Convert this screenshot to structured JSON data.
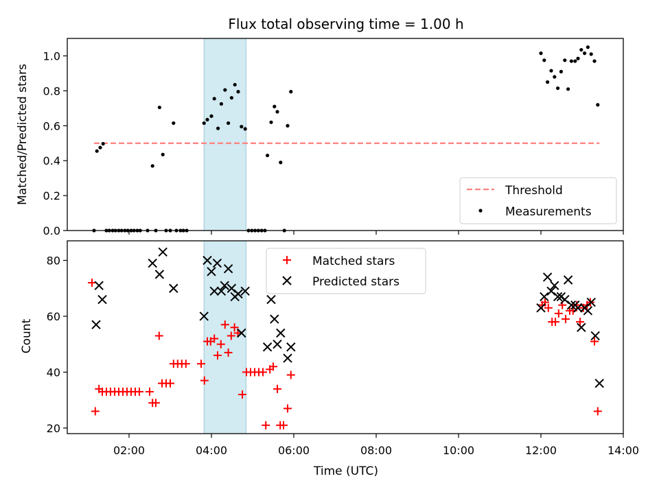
{
  "chart_data": [
    {
      "type": "scatter",
      "title": "Flux total observing time = 1.00 h",
      "xlabel": "",
      "ylabel": "Matched/Predicted stars",
      "xlim": [
        0.5,
        14.0
      ],
      "ylim": [
        0.0,
        1.1
      ],
      "yticks": [
        0.0,
        0.2,
        0.4,
        0.6,
        0.8,
        1.0
      ],
      "ytick_labels": [
        "0.0",
        "0.2",
        "0.4",
        "0.6",
        "0.8",
        "1.0"
      ],
      "highlight_span": {
        "x": [
          3.82,
          4.84
        ],
        "color": "#add8e6"
      },
      "threshold": {
        "name": "Threshold",
        "y": 0.5,
        "x": [
          1.15,
          13.42
        ],
        "color": "#ff7f7f"
      },
      "legend": {
        "position": "lower-right",
        "entries": [
          "Threshold",
          "Measurements"
        ]
      },
      "series": [
        {
          "name": "Measurements",
          "color": "#000000",
          "marker": "dot",
          "points": [
            [
              1.15,
              0
            ],
            [
              1.22,
              0.455
            ],
            [
              1.3,
              0.475
            ],
            [
              1.37,
              0.497
            ],
            [
              1.45,
              0
            ],
            [
              1.52,
              0
            ],
            [
              1.6,
              0
            ],
            [
              1.67,
              0
            ],
            [
              1.75,
              0
            ],
            [
              1.82,
              0
            ],
            [
              1.9,
              0
            ],
            [
              1.97,
              0
            ],
            [
              2.05,
              0
            ],
            [
              2.12,
              0
            ],
            [
              2.2,
              0
            ],
            [
              2.27,
              0
            ],
            [
              2.45,
              0
            ],
            [
              2.57,
              0.37
            ],
            [
              2.65,
              0
            ],
            [
              2.74,
              0.705
            ],
            [
              2.82,
              0.435
            ],
            [
              2.9,
              0
            ],
            [
              3.0,
              0
            ],
            [
              3.08,
              0.615
            ],
            [
              3.15,
              0
            ],
            [
              3.25,
              0
            ],
            [
              3.32,
              0
            ],
            [
              3.4,
              0
            ],
            [
              3.82,
              0.615
            ],
            [
              3.9,
              0.635
            ],
            [
              4.0,
              0.655
            ],
            [
              4.07,
              0.755
            ],
            [
              4.16,
              0.585
            ],
            [
              4.24,
              0.725
            ],
            [
              4.33,
              0.805
            ],
            [
              4.41,
              0.615
            ],
            [
              4.49,
              0.76
            ],
            [
              4.57,
              0.835
            ],
            [
              4.65,
              0.795
            ],
            [
              4.73,
              0.595
            ],
            [
              4.82,
              0.582
            ],
            [
              4.9,
              0
            ],
            [
              4.98,
              0
            ],
            [
              5.06,
              0
            ],
            [
              5.14,
              0
            ],
            [
              5.22,
              0
            ],
            [
              5.3,
              0
            ],
            [
              5.36,
              0.43
            ],
            [
              5.45,
              0.62
            ],
            [
              5.53,
              0.71
            ],
            [
              5.6,
              0.68
            ],
            [
              5.68,
              0.39
            ],
            [
              5.77,
              0
            ],
            [
              5.85,
              0.6
            ],
            [
              5.93,
              0.795
            ],
            [
              12.0,
              1.015
            ],
            [
              12.08,
              0.975
            ],
            [
              12.16,
              0.85
            ],
            [
              12.25,
              0.915
            ],
            [
              12.33,
              0.88
            ],
            [
              12.41,
              0.815
            ],
            [
              12.49,
              0.91
            ],
            [
              12.58,
              0.975
            ],
            [
              12.66,
              0.81
            ],
            [
              12.74,
              0.97
            ],
            [
              12.83,
              0.97
            ],
            [
              12.9,
              0.985
            ],
            [
              12.98,
              1.035
            ],
            [
              13.06,
              1.015
            ],
            [
              13.14,
              1.05
            ],
            [
              13.22,
              1.01
            ],
            [
              13.3,
              0.97
            ],
            [
              13.38,
              0.72
            ]
          ]
        }
      ]
    },
    {
      "type": "scatter",
      "title": "",
      "xlabel": "Time (UTC)",
      "ylabel": "Count",
      "xlim": [
        0.5,
        14.0
      ],
      "ylim": [
        18,
        87
      ],
      "xticks": [
        2,
        4,
        6,
        8,
        10,
        12,
        14
      ],
      "xtick_labels": [
        "02:00",
        "04:00",
        "06:00",
        "08:00",
        "10:00",
        "12:00",
        "14:00"
      ],
      "yticks": [
        20,
        40,
        60,
        80
      ],
      "ytick_labels": [
        "20",
        "40",
        "60",
        "80"
      ],
      "highlight_span": {
        "x": [
          3.82,
          4.84
        ],
        "color": "#add8e6"
      },
      "legend": {
        "position": "top-center",
        "entries": [
          "Matched stars",
          "Predicted stars"
        ]
      },
      "series": [
        {
          "name": "Matched stars",
          "color": "#ff0000",
          "marker": "plus",
          "points": [
            [
              1.1,
              72
            ],
            [
              1.18,
              26
            ],
            [
              1.27,
              34
            ],
            [
              1.35,
              33
            ],
            [
              1.45,
              33
            ],
            [
              1.55,
              33
            ],
            [
              1.65,
              33
            ],
            [
              1.75,
              33
            ],
            [
              1.85,
              33
            ],
            [
              1.95,
              33
            ],
            [
              2.05,
              33
            ],
            [
              2.15,
              33
            ],
            [
              2.25,
              33
            ],
            [
              2.5,
              33
            ],
            [
              2.57,
              29
            ],
            [
              2.65,
              29
            ],
            [
              2.73,
              53
            ],
            [
              2.8,
              36
            ],
            [
              2.9,
              36
            ],
            [
              3.0,
              36
            ],
            [
              3.08,
              43
            ],
            [
              3.18,
              43
            ],
            [
              3.28,
              43
            ],
            [
              3.38,
              43
            ],
            [
              3.75,
              43
            ],
            [
              3.83,
              37
            ],
            [
              3.9,
              51
            ],
            [
              3.98,
              51
            ],
            [
              4.07,
              52
            ],
            [
              4.15,
              46
            ],
            [
              4.23,
              50
            ],
            [
              4.33,
              57
            ],
            [
              4.41,
              47
            ],
            [
              4.48,
              53
            ],
            [
              4.56,
              56
            ],
            [
              4.64,
              54
            ],
            [
              4.75,
              32
            ],
            [
              4.85,
              40
            ],
            [
              4.95,
              40
            ],
            [
              5.05,
              40
            ],
            [
              5.15,
              40
            ],
            [
              5.25,
              40
            ],
            [
              5.32,
              21
            ],
            [
              5.42,
              41
            ],
            [
              5.5,
              42
            ],
            [
              5.6,
              34
            ],
            [
              5.67,
              21
            ],
            [
              5.75,
              21
            ],
            [
              5.85,
              27
            ],
            [
              5.93,
              39
            ],
            [
              12.03,
              64
            ],
            [
              12.1,
              65
            ],
            [
              12.18,
              63
            ],
            [
              12.27,
              58
            ],
            [
              12.35,
              58
            ],
            [
              12.43,
              61
            ],
            [
              12.52,
              64
            ],
            [
              12.6,
              59
            ],
            [
              12.7,
              62
            ],
            [
              12.78,
              62
            ],
            [
              12.87,
              64
            ],
            [
              12.95,
              58
            ],
            [
              13.03,
              63
            ],
            [
              13.12,
              64
            ],
            [
              13.2,
              65
            ],
            [
              13.3,
              51
            ],
            [
              13.38,
              26
            ]
          ]
        },
        {
          "name": "Predicted stars",
          "color": "#000000",
          "marker": "x",
          "points": [
            [
              1.2,
              57
            ],
            [
              1.27,
              71
            ],
            [
              1.35,
              66
            ],
            [
              2.57,
              79
            ],
            [
              2.74,
              75
            ],
            [
              2.82,
              83
            ],
            [
              3.08,
              70
            ],
            [
              3.82,
              60
            ],
            [
              3.9,
              80
            ],
            [
              4.0,
              76
            ],
            [
              4.07,
              69
            ],
            [
              4.14,
              79
            ],
            [
              4.24,
              69
            ],
            [
              4.32,
              71
            ],
            [
              4.41,
              77
            ],
            [
              4.49,
              70
            ],
            [
              4.57,
              67
            ],
            [
              4.65,
              68
            ],
            [
              4.73,
              54
            ],
            [
              4.82,
              69
            ],
            [
              5.36,
              49
            ],
            [
              5.45,
              66
            ],
            [
              5.53,
              59
            ],
            [
              5.6,
              50
            ],
            [
              5.68,
              54
            ],
            [
              5.85,
              45
            ],
            [
              5.93,
              49
            ],
            [
              12.0,
              63
            ],
            [
              12.08,
              67
            ],
            [
              12.16,
              74
            ],
            [
              12.25,
              69
            ],
            [
              12.33,
              71
            ],
            [
              12.41,
              67
            ],
            [
              12.49,
              67
            ],
            [
              12.58,
              66
            ],
            [
              12.66,
              73
            ],
            [
              12.74,
              64
            ],
            [
              12.83,
              64
            ],
            [
              12.9,
              63
            ],
            [
              12.98,
              56
            ],
            [
              13.06,
              63
            ],
            [
              13.14,
              62
            ],
            [
              13.22,
              65
            ],
            [
              13.32,
              53
            ],
            [
              13.42,
              36
            ]
          ]
        }
      ]
    }
  ]
}
